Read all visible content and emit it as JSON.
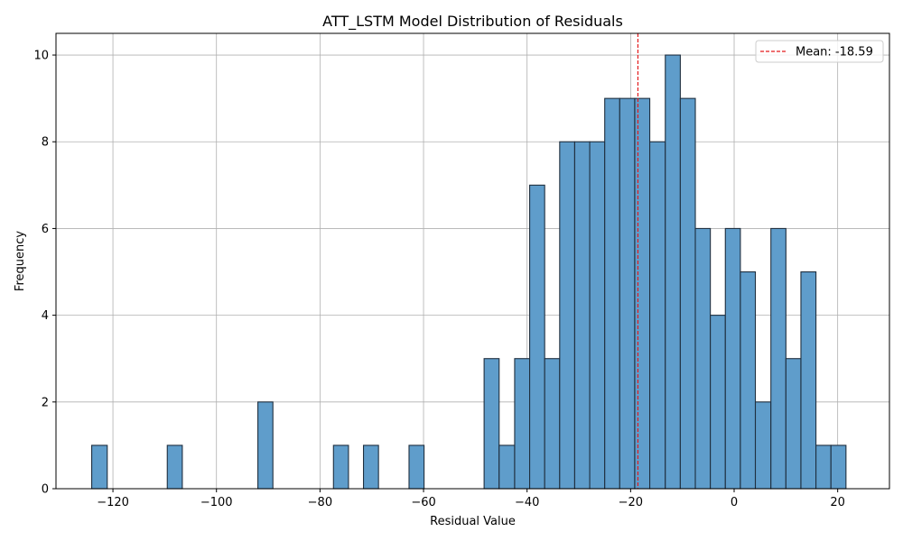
{
  "chart_data": {
    "type": "bar",
    "title": "ATT_LSTM Model Distribution of Residuals",
    "xlabel": "Residual Value",
    "ylabel": "Frequency",
    "xlim": [
      -131,
      30
    ],
    "ylim": [
      0,
      10.5
    ],
    "xticks": [
      -120,
      -100,
      -80,
      -60,
      -40,
      -20,
      0,
      20
    ],
    "yticks": [
      0,
      2,
      4,
      6,
      8,
      10
    ],
    "grid": true,
    "legend_position": "top-right",
    "bar_color": "#5f9dcb",
    "edge_color": "#1f2f3f",
    "mean_line": {
      "value": -18.59,
      "label": "Mean: -18.59",
      "color": "#e41a1c",
      "style": "dashed"
    },
    "bins": [
      {
        "start": -124.1,
        "end": -121.1,
        "count": 1
      },
      {
        "start": -109.5,
        "end": -106.6,
        "count": 1
      },
      {
        "start": -92.0,
        "end": -89.1,
        "count": 2
      },
      {
        "start": -77.4,
        "end": -74.5,
        "count": 1
      },
      {
        "start": -71.6,
        "end": -68.7,
        "count": 1
      },
      {
        "start": -62.8,
        "end": -59.9,
        "count": 1
      },
      {
        "start": -48.3,
        "end": -45.4,
        "count": 3
      },
      {
        "start": -45.4,
        "end": -42.4,
        "count": 1
      },
      {
        "start": -42.4,
        "end": -39.5,
        "count": 3
      },
      {
        "start": -39.5,
        "end": -36.6,
        "count": 7
      },
      {
        "start": -36.6,
        "end": -33.7,
        "count": 3
      },
      {
        "start": -33.7,
        "end": -30.8,
        "count": 8
      },
      {
        "start": -30.8,
        "end": -27.9,
        "count": 8
      },
      {
        "start": -27.9,
        "end": -25.0,
        "count": 8
      },
      {
        "start": -25.0,
        "end": -22.1,
        "count": 9
      },
      {
        "start": -22.1,
        "end": -19.2,
        "count": 9
      },
      {
        "start": -19.2,
        "end": -16.3,
        "count": 9
      },
      {
        "start": -16.3,
        "end": -13.3,
        "count": 8
      },
      {
        "start": -13.3,
        "end": -10.4,
        "count": 10
      },
      {
        "start": -10.4,
        "end": -7.5,
        "count": 9
      },
      {
        "start": -7.5,
        "end": -4.6,
        "count": 6
      },
      {
        "start": -4.6,
        "end": -1.7,
        "count": 4
      },
      {
        "start": -1.7,
        "end": 1.2,
        "count": 6
      },
      {
        "start": 1.2,
        "end": 4.1,
        "count": 5
      },
      {
        "start": 4.1,
        "end": 7.1,
        "count": 2
      },
      {
        "start": 7.1,
        "end": 10.0,
        "count": 6
      },
      {
        "start": 10.0,
        "end": 12.9,
        "count": 3
      },
      {
        "start": 12.9,
        "end": 15.8,
        "count": 5
      },
      {
        "start": 15.8,
        "end": 18.7,
        "count": 1
      },
      {
        "start": 18.7,
        "end": 21.6,
        "count": 1
      }
    ]
  }
}
